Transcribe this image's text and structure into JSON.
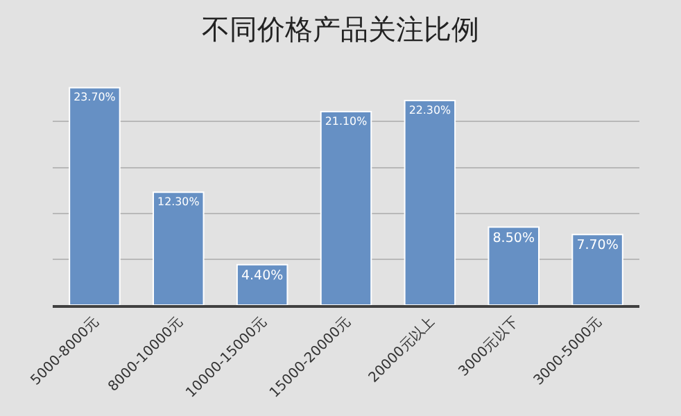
{
  "chart_data": {
    "type": "bar",
    "title": "不同价格产品关注比例",
    "categories": [
      "5000-8000元",
      "8000-10000元",
      "10000-15000元",
      "15000-20000元",
      "20000元以上",
      "3000元以下",
      "3000-5000元"
    ],
    "values": [
      23.7,
      12.3,
      4.4,
      21.1,
      22.3,
      8.5,
      7.7
    ],
    "value_labels": [
      "23.70%",
      "12.30%",
      "4.40%",
      "21.10%",
      "22.30%",
      "8.50%",
      "7.70%"
    ],
    "color": "#6690c4",
    "tick_labels": "x",
    "grid": "y",
    "legend": false
  }
}
